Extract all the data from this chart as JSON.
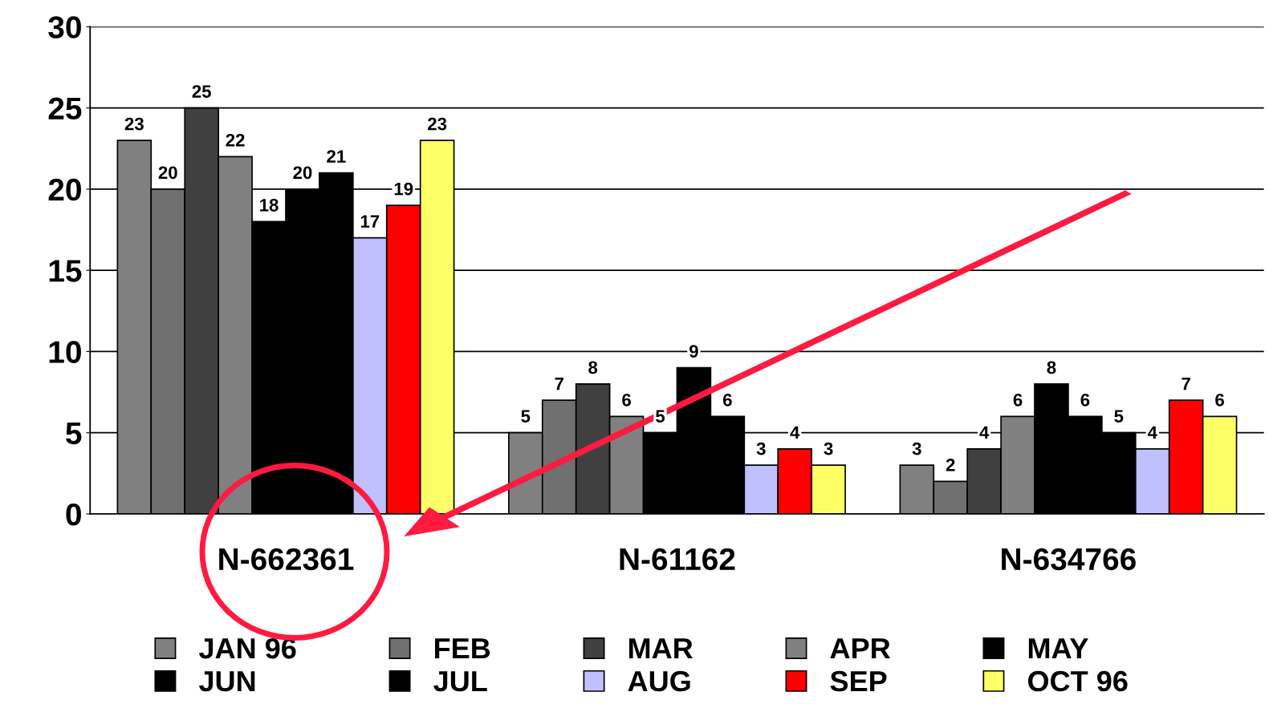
{
  "chart_data": {
    "type": "bar",
    "categories": [
      "N-662361",
      "N-61162",
      "N-634766"
    ],
    "series": [
      {
        "name": "JAN 96",
        "color": "#808080",
        "values": [
          23,
          5,
          3
        ]
      },
      {
        "name": "FEB",
        "color": "#707070",
        "values": [
          20,
          7,
          2
        ]
      },
      {
        "name": "MAR",
        "color": "#404040",
        "values": [
          25,
          8,
          4
        ]
      },
      {
        "name": "APR",
        "color": "#808080",
        "values": [
          22,
          6,
          6
        ]
      },
      {
        "name": "MAY",
        "color": "#000000",
        "values": [
          18,
          5,
          8
        ]
      },
      {
        "name": "JUN",
        "color": "#000000",
        "values": [
          20,
          9,
          6
        ]
      },
      {
        "name": "JUL",
        "color": "#000000",
        "values": [
          21,
          6,
          5
        ]
      },
      {
        "name": "AUG",
        "color": "#c0c0ff",
        "values": [
          17,
          3,
          4
        ]
      },
      {
        "name": "SEP",
        "color": "#ff0000",
        "values": [
          19,
          4,
          7
        ]
      },
      {
        "name": "OCT 96",
        "color": "#ffff66",
        "values": [
          23,
          3,
          6
        ]
      }
    ],
    "ylim": [
      0,
      30
    ],
    "yticks": [
      0,
      5,
      10,
      15,
      20,
      25,
      30
    ],
    "grid": "y",
    "legend": "bottom",
    "data_labels": true
  }
}
